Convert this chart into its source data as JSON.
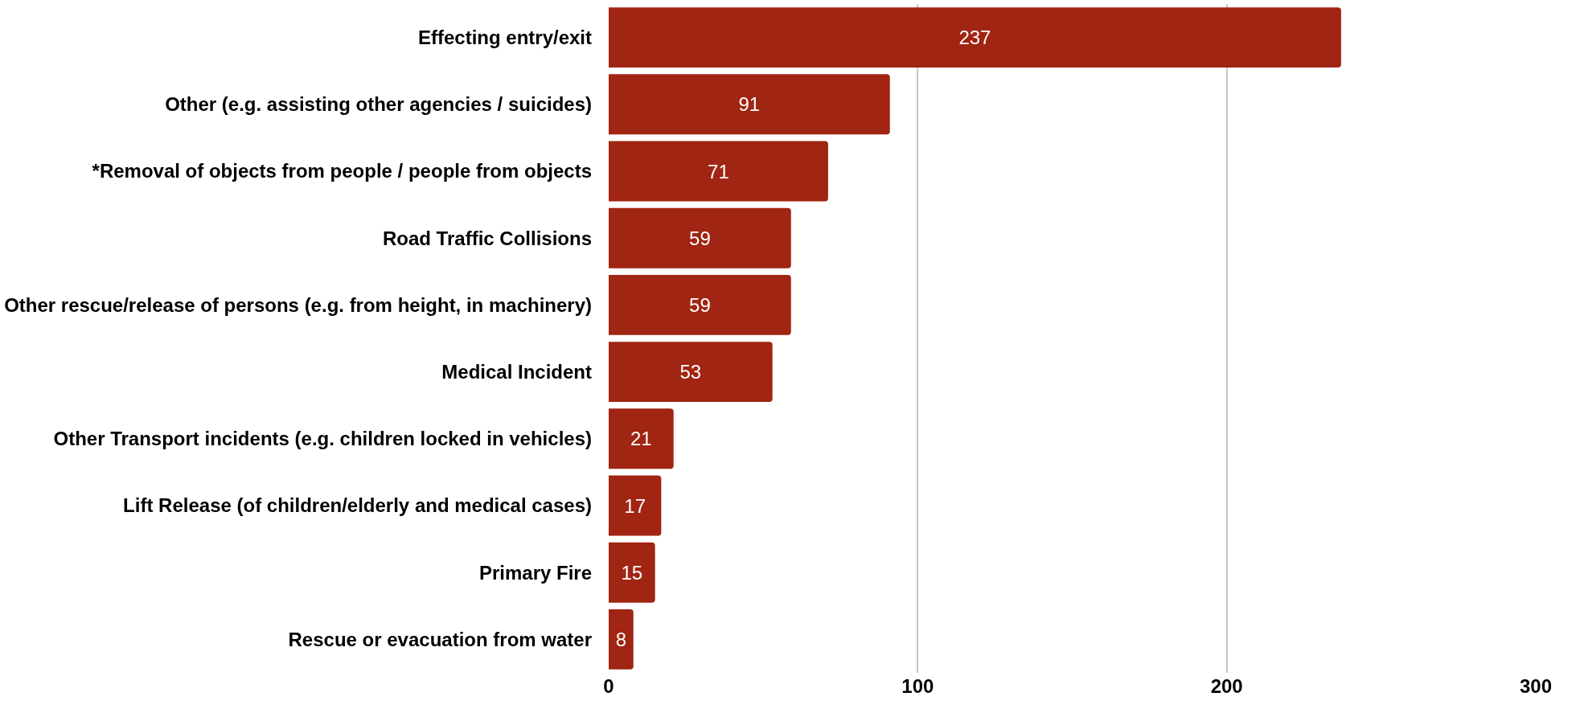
{
  "chart_data": {
    "type": "bar",
    "orientation": "horizontal",
    "categories": [
      "Effecting entry/exit",
      "Other (e.g. assisting other agencies / suicides)",
      "*Removal of objects from people / people from objects",
      "Road Traffic Collisions",
      "Other rescue/release of persons (e.g. from height, in machinery)",
      "Medical Incident",
      "Other Transport incidents (e.g. children locked in vehicles)",
      "Lift Release (of children/elderly and medical cases)",
      "Primary Fire",
      "Rescue or evacuation from water"
    ],
    "values": [
      237,
      91,
      71,
      59,
      59,
      53,
      21,
      17,
      15,
      8
    ],
    "color": "#a02512",
    "xlim": [
      0,
      300
    ],
    "xticks": [
      0,
      100,
      200,
      300
    ],
    "grid": "x",
    "data_labels": true
  }
}
